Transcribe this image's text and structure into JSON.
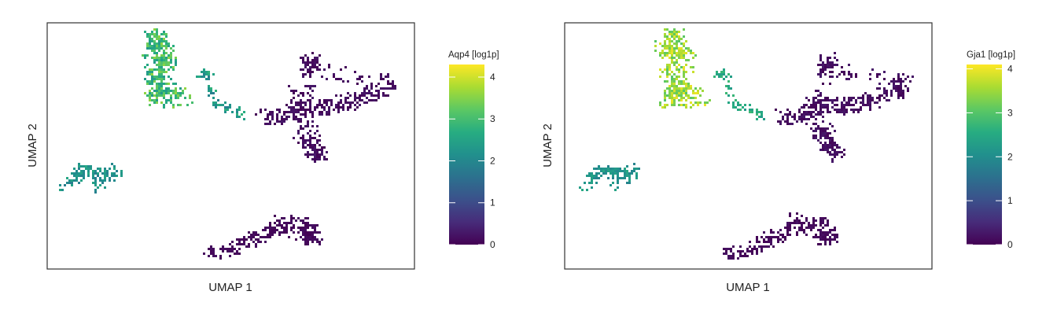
{
  "chart_data": [
    {
      "type": "scatter",
      "xlabel": "UMAP 1",
      "ylabel": "UMAP 2",
      "colorbar": {
        "label": "Aqp4 [log1p]",
        "min": 0,
        "max": 4.3,
        "ticks": [
          0,
          1,
          2,
          3,
          4
        ],
        "colormap": "viridis"
      },
      "clusters": [
        {
          "region": "upper-left",
          "level_range": [
            2.3,
            3.6
          ]
        },
        {
          "region": "upper-left-small",
          "level_range": [
            1.8,
            2.8
          ]
        },
        {
          "region": "left",
          "level_range": [
            1.8,
            2.6
          ]
        },
        {
          "region": "center-right",
          "level_range": [
            0.0,
            0.3
          ]
        },
        {
          "region": "bottom",
          "level_range": [
            0.0,
            0.2
          ]
        }
      ]
    },
    {
      "type": "scatter",
      "xlabel": "UMAP 1",
      "ylabel": "UMAP 2",
      "colorbar": {
        "label": "Gja1 [log1p]",
        "min": 0,
        "max": 4.1,
        "ticks": [
          0,
          1,
          2,
          3,
          4
        ],
        "colormap": "viridis"
      },
      "clusters": [
        {
          "region": "upper-left",
          "level_range": [
            3.0,
            4.0
          ]
        },
        {
          "region": "upper-left-small",
          "level_range": [
            2.2,
            2.8
          ]
        },
        {
          "region": "left",
          "level_range": [
            1.8,
            2.5
          ]
        },
        {
          "region": "center-right",
          "level_range": [
            0.0,
            0.3
          ]
        },
        {
          "region": "bottom",
          "level_range": [
            0.0,
            0.2
          ]
        }
      ]
    }
  ]
}
